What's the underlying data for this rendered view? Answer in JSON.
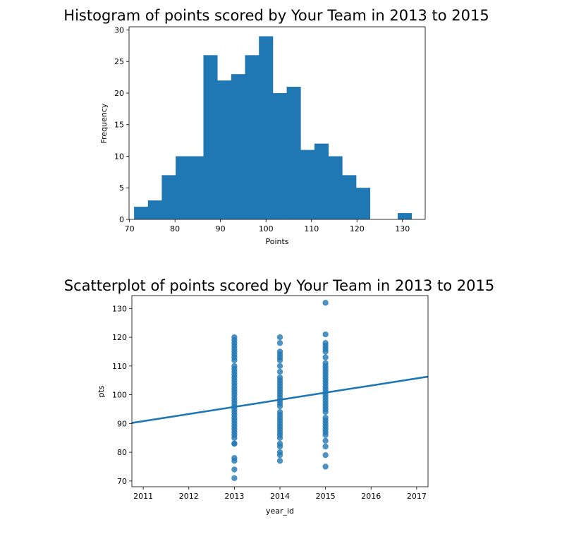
{
  "chart_data": [
    {
      "type": "bar",
      "title": "Histogram of points scored by Your Team in 2013 to 2015",
      "xlabel": "Points",
      "ylabel": "Frequency",
      "xlim": [
        69.9,
        135.0
      ],
      "ylim": [
        0,
        30.5
      ],
      "xticks": [
        70,
        80,
        90,
        100,
        110,
        120,
        130
      ],
      "yticks": [
        0,
        5,
        10,
        15,
        20,
        25,
        30
      ],
      "bin_edges": [
        71.0,
        74.05,
        77.1,
        80.15,
        83.2,
        86.25,
        89.3,
        92.35,
        95.4,
        98.45,
        101.5,
        104.55,
        107.6,
        110.65,
        113.7,
        116.75,
        119.8,
        122.85,
        125.9,
        128.95,
        132.0
      ],
      "values": [
        2,
        3,
        7,
        10,
        10,
        26,
        22,
        23,
        26,
        29,
        20,
        21,
        11,
        12,
        10,
        7,
        5,
        0,
        0,
        1
      ],
      "color": "#1f77b4"
    },
    {
      "type": "scatter",
      "title": "Scatterplot of points scored by Your Team in 2013 to 2015",
      "xlabel": "year_id",
      "ylabel": "pts",
      "xlim": [
        2010.75,
        2017.25
      ],
      "ylim": [
        68.0,
        134.5
      ],
      "xticks": [
        2011,
        2012,
        2013,
        2014,
        2015,
        2016,
        2017
      ],
      "yticks": [
        70,
        80,
        90,
        100,
        110,
        120,
        130
      ],
      "points": [
        {
          "x": 2013,
          "ys": [
            71,
            74,
            77,
            78,
            83,
            83,
            85,
            86,
            87,
            88,
            89,
            90,
            91,
            92,
            93,
            94,
            95,
            96,
            97,
            98,
            99,
            100,
            101,
            102,
            103,
            104,
            105,
            106,
            107,
            108,
            109,
            110,
            112,
            113,
            114,
            115,
            116,
            117,
            118,
            119,
            120
          ]
        },
        {
          "x": 2014,
          "ys": [
            77,
            79,
            80,
            82,
            83,
            85,
            86,
            87,
            88,
            89,
            90,
            91,
            92,
            93,
            94,
            96,
            97,
            98,
            99,
            100,
            101,
            102,
            103,
            104,
            105,
            106,
            108,
            110,
            112,
            113,
            114,
            115,
            118,
            120
          ]
        },
        {
          "x": 2015,
          "ys": [
            75,
            79,
            82,
            84,
            86,
            87,
            88,
            89,
            90,
            91,
            92,
            94,
            95,
            96,
            97,
            98,
            99,
            100,
            101,
            102,
            103,
            104,
            105,
            106,
            107,
            108,
            109,
            110,
            111,
            113,
            115,
            116,
            117,
            118,
            121,
            132
          ]
        }
      ],
      "regression_line": {
        "x": [
          2010.75,
          2017.25
        ],
        "y": [
          90.2,
          106.3
        ]
      },
      "color": "#1f77b4"
    }
  ]
}
